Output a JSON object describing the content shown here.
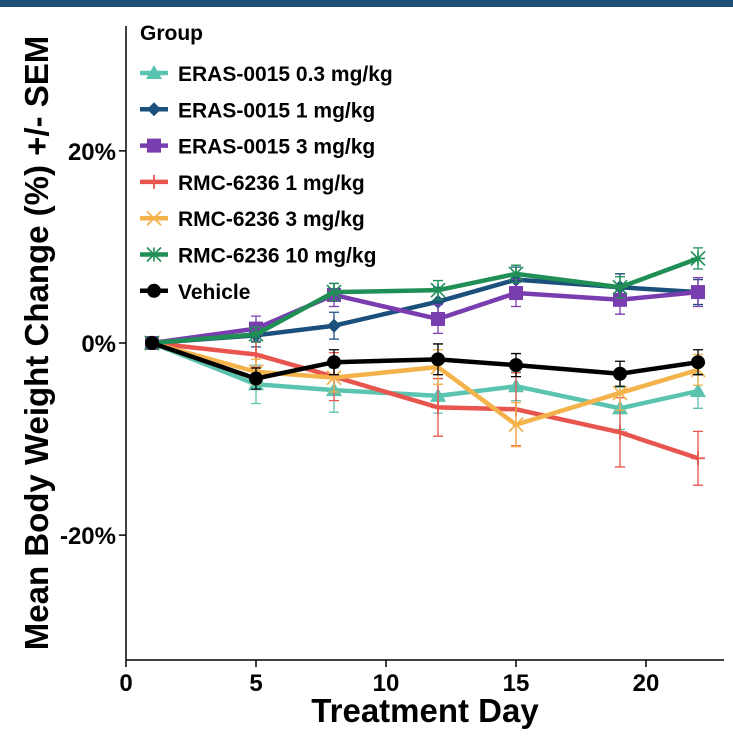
{
  "header_bar_color": "#1f4e79",
  "chart_data": {
    "type": "line",
    "title": "",
    "xlabel": "Treatment Day",
    "ylabel": "Mean Body Weight Change (%) +/- SEM",
    "xlim": [
      0,
      23
    ],
    "ylim": [
      -33,
      33
    ],
    "x_ticks": [
      0,
      5,
      10,
      15,
      20
    ],
    "x_tick_labels": [
      "0",
      "5",
      "10",
      "15",
      "20"
    ],
    "y_ticks": [
      20,
      0,
      -20
    ],
    "y_tick_labels": [
      "20%",
      "0%",
      "-20%"
    ],
    "grid": false,
    "legend_title": "Group",
    "legend_position": "top-left",
    "x": [
      1,
      5,
      8,
      12,
      15,
      19,
      22
    ],
    "series": [
      {
        "name": "ERAS-0015 0.3 mg/kg",
        "color": "#5bc4b0",
        "marker": "triangle",
        "values": [
          0,
          -4.3,
          -4.9,
          -5.5,
          -4.5,
          -6.8,
          -5.0
        ],
        "sem": [
          0.3,
          2.0,
          2.3,
          1.8,
          1.5,
          2.2,
          1.8
        ]
      },
      {
        "name": "ERAS-0015 1 mg/kg",
        "color": "#1b4f7c",
        "marker": "diamond",
        "values": [
          0,
          0.8,
          1.8,
          4.3,
          6.6,
          5.8,
          5.3
        ],
        "sem": [
          0.3,
          1.2,
          1.4,
          1.5,
          1.3,
          1.4,
          1.3
        ]
      },
      {
        "name": "ERAS-0015 3 mg/kg",
        "color": "#7a3db0",
        "marker": "square",
        "values": [
          0,
          1.5,
          5.0,
          2.5,
          5.2,
          4.5,
          5.3
        ],
        "sem": [
          0.3,
          1.3,
          1.2,
          1.5,
          1.4,
          1.5,
          1.5
        ]
      },
      {
        "name": "RMC-6236 1 mg/kg",
        "color": "#e8554e",
        "marker": "plus",
        "values": [
          0,
          -1.2,
          -3.5,
          -6.7,
          -6.9,
          -9.3,
          -12.0
        ],
        "sem": [
          0.3,
          1.3,
          2.5,
          3.0,
          3.8,
          3.6,
          2.8
        ]
      },
      {
        "name": "RMC-6236 3 mg/kg",
        "color": "#f4b24a",
        "marker": "cross",
        "values": [
          0,
          -3.0,
          -3.6,
          -2.5,
          -8.5,
          -5.2,
          -2.8
        ],
        "sem": [
          0.3,
          1.3,
          1.5,
          1.8,
          2.3,
          1.8,
          1.6
        ]
      },
      {
        "name": "RMC-6236 10 mg/kg",
        "color": "#1f8f56",
        "marker": "star",
        "values": [
          0,
          0.9,
          5.3,
          5.5,
          7.2,
          5.8,
          8.8
        ],
        "sem": [
          0.3,
          0.8,
          0.9,
          1.0,
          0.9,
          1.1,
          1.1
        ]
      },
      {
        "name": "Vehicle",
        "color": "#000000",
        "marker": "circle",
        "values": [
          0,
          -3.7,
          -2.0,
          -1.7,
          -2.3,
          -3.2,
          -2.0
        ],
        "sem": [
          0.3,
          1.1,
          1.3,
          1.6,
          1.2,
          1.3,
          1.3
        ]
      }
    ]
  }
}
